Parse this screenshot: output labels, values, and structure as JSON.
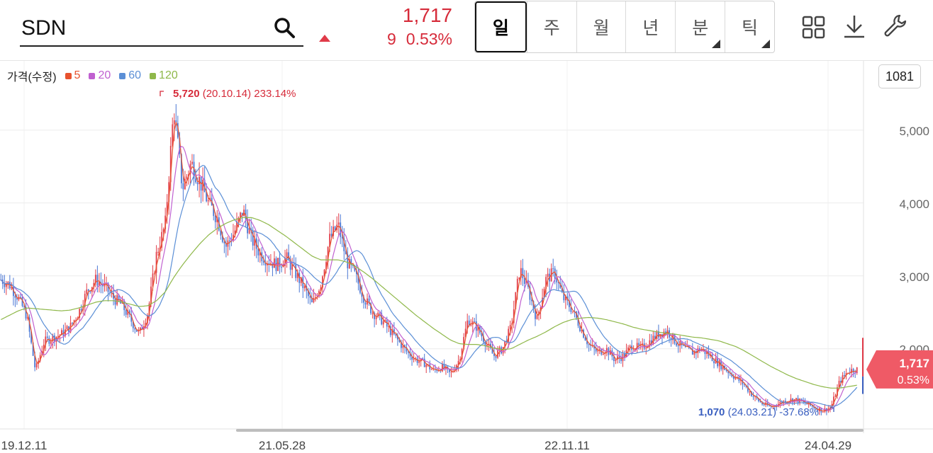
{
  "search": {
    "value": "SDN"
  },
  "quote": {
    "price": "1,717",
    "change": "9",
    "change_pct": "0.53%",
    "up_color": "#d62b3a"
  },
  "periods": [
    {
      "label": "일",
      "active": true,
      "has_submenu": false
    },
    {
      "label": "주",
      "active": false,
      "has_submenu": false
    },
    {
      "label": "월",
      "active": false,
      "has_submenu": false
    },
    {
      "label": "년",
      "active": false,
      "has_submenu": false
    },
    {
      "label": "분",
      "active": false,
      "has_submenu": true
    },
    {
      "label": "틱",
      "active": false,
      "has_submenu": true
    }
  ],
  "toolbar": {
    "icons": [
      "grid-icon",
      "download-icon",
      "wrench-icon"
    ]
  },
  "legend": {
    "title": "가격(수정)",
    "items": [
      {
        "label": "5",
        "color": "#e8522e"
      },
      {
        "label": "20",
        "color": "#c060d0"
      },
      {
        "label": "60",
        "color": "#5b8fd6"
      },
      {
        "label": "120",
        "color": "#8fb84a"
      }
    ]
  },
  "zoom_count": "1081",
  "chart_data": {
    "type": "candlestick",
    "x_ticks": [
      "19.12.11",
      "21.05.28",
      "22.11.11",
      "24.04.29"
    ],
    "y_ticks": [
      "5,000",
      "4,000",
      "3,000",
      "2,000"
    ],
    "ylim": [
      900,
      5950
    ],
    "grid": true,
    "high_annotation": {
      "value": "5,720",
      "date": "(20.10.14)",
      "pct": "233.14%"
    },
    "low_annotation": {
      "value": "1,070",
      "date": "(24.03.21)",
      "pct": "-37.68%"
    },
    "last": {
      "price": "1,717",
      "pct": "0.53%"
    },
    "series": [
      {
        "name": "가격(수정)",
        "values": [
          2950,
          2880,
          2700,
          2450,
          1700,
          2100,
          2150,
          2200,
          2300,
          2500,
          2800,
          2950,
          2850,
          2700,
          2600,
          2400,
          2200,
          2500,
          3300,
          3700,
          5300,
          4200,
          4550,
          4300,
          4000,
          3800,
          3400,
          3600,
          3900,
          3500,
          3300,
          3200,
          3150,
          3250,
          3050,
          2850,
          2600,
          2900,
          3500,
          3700,
          3200,
          3000,
          2700,
          2500,
          2400,
          2250,
          2100,
          1950,
          1850,
          1800,
          1700,
          1750,
          1650,
          1850,
          2400,
          2300,
          2100,
          1900,
          2000,
          2300,
          3100,
          2800,
          2400,
          2950,
          3050,
          2700,
          2550,
          2300,
          2050,
          1950,
          2000,
          1850,
          1900,
          2050,
          2000,
          2100,
          2200,
          2250,
          2100,
          2000,
          1950,
          2000,
          1900,
          1800,
          1700,
          1600,
          1500,
          1350,
          1250,
          1200,
          1250,
          1300,
          1300,
          1250,
          1200,
          1150,
          1200,
          1550,
          1700,
          1717
        ]
      },
      {
        "name": "120",
        "values": [
          2400,
          2460,
          2520,
          2560,
          2550,
          2540,
          2530,
          2520,
          2530,
          2560,
          2600,
          2640,
          2660,
          2660,
          2640,
          2610,
          2580,
          2590,
          2660,
          2780,
          2980,
          3150,
          3300,
          3440,
          3560,
          3650,
          3720,
          3770,
          3800,
          3800,
          3760,
          3700,
          3620,
          3540,
          3450,
          3360,
          3270,
          3220,
          3220,
          3220,
          3190,
          3130,
          3050,
          2960,
          2860,
          2760,
          2660,
          2560,
          2460,
          2370,
          2280,
          2200,
          2120,
          2070,
          2060,
          2060,
          2040,
          2010,
          1990,
          2000,
          2060,
          2120,
          2170,
          2230,
          2300,
          2360,
          2400,
          2420,
          2430,
          2420,
          2400,
          2370,
          2340,
          2300,
          2270,
          2250,
          2230,
          2210,
          2200,
          2180,
          2160,
          2150,
          2130,
          2110,
          2070,
          2030,
          1970,
          1900,
          1830,
          1760,
          1700,
          1640,
          1590,
          1550,
          1510,
          1480,
          1460,
          1460,
          1480,
          1500
        ]
      }
    ]
  }
}
